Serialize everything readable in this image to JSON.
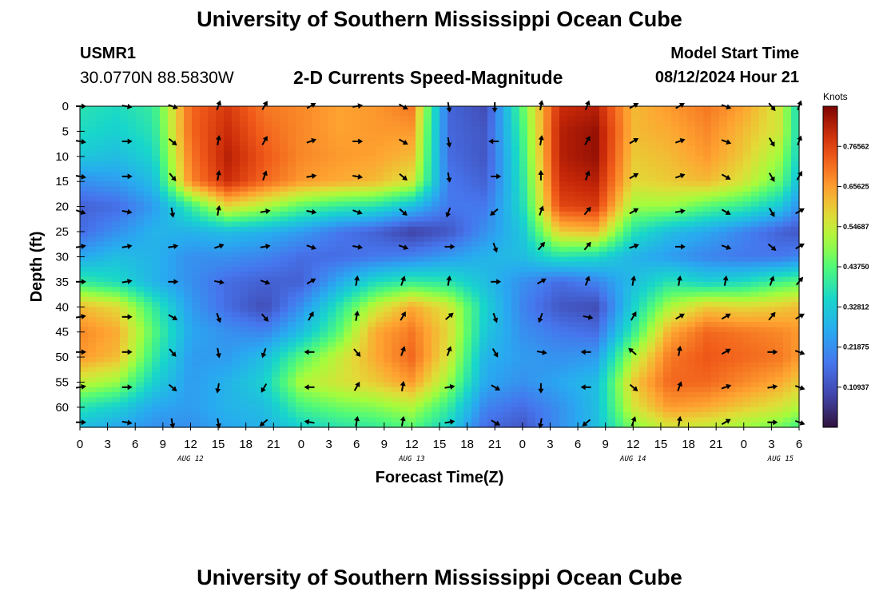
{
  "header": {
    "title": "University of Southern Mississippi Ocean Cube",
    "station_id": "USMR1",
    "station_location": "30.0770N  88.5830W",
    "chart_title": "2-D Currents Speed-Magnitude",
    "run_label": "Model Start Time",
    "run_time": "08/12/2024 Hour 21"
  },
  "footer": {
    "title": "University of Southern Mississippi Ocean Cube"
  },
  "chart_data": {
    "type": "heatmap",
    "title": "2-D Currents Speed-Magnitude",
    "xlabel": "Forecast Time(Z)",
    "ylabel": "Depth (ft)",
    "x_range_hours": [
      0,
      78
    ],
    "y_range_ft": [
      0,
      64
    ],
    "x_ticks": [
      {
        "h": 0,
        "label": "0"
      },
      {
        "h": 3,
        "label": "3"
      },
      {
        "h": 6,
        "label": "6"
      },
      {
        "h": 9,
        "label": "9"
      },
      {
        "h": 12,
        "label": "12"
      },
      {
        "h": 15,
        "label": "15"
      },
      {
        "h": 18,
        "label": "18"
      },
      {
        "h": 21,
        "label": "21"
      },
      {
        "h": 24,
        "label": "0"
      },
      {
        "h": 27,
        "label": "3"
      },
      {
        "h": 30,
        "label": "6"
      },
      {
        "h": 33,
        "label": "9"
      },
      {
        "h": 36,
        "label": "12"
      },
      {
        "h": 39,
        "label": "15"
      },
      {
        "h": 42,
        "label": "18"
      },
      {
        "h": 45,
        "label": "21"
      },
      {
        "h": 48,
        "label": "0"
      },
      {
        "h": 51,
        "label": "3"
      },
      {
        "h": 54,
        "label": "6"
      },
      {
        "h": 57,
        "label": "9"
      },
      {
        "h": 60,
        "label": "12"
      },
      {
        "h": 63,
        "label": "15"
      },
      {
        "h": 66,
        "label": "18"
      },
      {
        "h": 69,
        "label": "21"
      },
      {
        "h": 72,
        "label": "0"
      },
      {
        "h": 75,
        "label": "3"
      },
      {
        "h": 78,
        "label": "6"
      }
    ],
    "day_labels": [
      {
        "h": 12,
        "label": "AUG 12"
      },
      {
        "h": 36,
        "label": "AUG 13"
      },
      {
        "h": 60,
        "label": "AUG 14"
      },
      {
        "h": 76,
        "label": "AUG 15"
      }
    ],
    "y_ticks": [
      0,
      5,
      10,
      15,
      20,
      25,
      30,
      35,
      40,
      45,
      50,
      55,
      60
    ],
    "colorbar": {
      "units": "Knots",
      "min": 0.0,
      "max": 0.875,
      "tick_values": [
        0.765625,
        0.65625,
        0.546875,
        0.4375,
        0.328125,
        0.21875,
        0.109375
      ],
      "tick_labels": [
        "0.76562",
        "0.65625",
        "0.54687",
        "0.43750",
        "0.32812",
        "0.21875",
        "0.10937"
      ]
    },
    "speed_grid": {
      "hours": [
        0,
        4,
        8,
        12,
        16,
        20,
        24,
        28,
        32,
        36,
        40,
        44,
        48,
        52,
        56,
        60,
        64,
        68,
        72,
        76,
        78
      ],
      "depths": [
        0,
        5,
        10,
        15,
        20,
        25,
        30,
        35,
        40,
        45,
        50,
        55,
        60,
        64
      ],
      "values": [
        [
          0.38,
          0.36,
          0.4,
          0.72,
          0.78,
          0.7,
          0.68,
          0.65,
          0.66,
          0.7,
          0.15,
          0.1,
          0.45,
          0.8,
          0.82,
          0.62,
          0.66,
          0.7,
          0.65,
          0.55,
          0.35
        ],
        [
          0.36,
          0.34,
          0.38,
          0.72,
          0.8,
          0.72,
          0.68,
          0.65,
          0.66,
          0.66,
          0.15,
          0.12,
          0.42,
          0.82,
          0.85,
          0.62,
          0.64,
          0.68,
          0.62,
          0.55,
          0.35
        ],
        [
          0.32,
          0.3,
          0.35,
          0.7,
          0.82,
          0.74,
          0.68,
          0.66,
          0.65,
          0.62,
          0.16,
          0.12,
          0.4,
          0.82,
          0.85,
          0.6,
          0.62,
          0.66,
          0.6,
          0.5,
          0.34
        ],
        [
          0.22,
          0.24,
          0.3,
          0.68,
          0.8,
          0.72,
          0.66,
          0.64,
          0.62,
          0.56,
          0.18,
          0.14,
          0.38,
          0.8,
          0.82,
          0.58,
          0.6,
          0.62,
          0.56,
          0.45,
          0.3
        ],
        [
          0.14,
          0.16,
          0.24,
          0.4,
          0.58,
          0.52,
          0.44,
          0.4,
          0.38,
          0.3,
          0.18,
          0.18,
          0.36,
          0.76,
          0.78,
          0.5,
          0.5,
          0.44,
          0.4,
          0.32,
          0.22
        ],
        [
          0.16,
          0.22,
          0.28,
          0.28,
          0.3,
          0.28,
          0.24,
          0.18,
          0.14,
          0.08,
          0.12,
          0.22,
          0.32,
          0.6,
          0.62,
          0.38,
          0.3,
          0.26,
          0.2,
          0.14,
          0.12
        ],
        [
          0.26,
          0.3,
          0.28,
          0.22,
          0.22,
          0.2,
          0.16,
          0.16,
          0.18,
          0.2,
          0.24,
          0.28,
          0.3,
          0.38,
          0.36,
          0.28,
          0.24,
          0.2,
          0.18,
          0.18,
          0.2
        ],
        [
          0.4,
          0.36,
          0.28,
          0.22,
          0.16,
          0.14,
          0.14,
          0.26,
          0.36,
          0.4,
          0.38,
          0.3,
          0.22,
          0.16,
          0.2,
          0.3,
          0.38,
          0.34,
          0.36,
          0.42,
          0.44
        ],
        [
          0.62,
          0.58,
          0.4,
          0.24,
          0.16,
          0.1,
          0.22,
          0.38,
          0.54,
          0.64,
          0.56,
          0.34,
          0.2,
          0.12,
          0.1,
          0.34,
          0.52,
          0.6,
          0.58,
          0.6,
          0.62
        ],
        [
          0.68,
          0.64,
          0.44,
          0.26,
          0.22,
          0.2,
          0.3,
          0.44,
          0.64,
          0.7,
          0.58,
          0.32,
          0.22,
          0.18,
          0.16,
          0.4,
          0.64,
          0.72,
          0.7,
          0.68,
          0.66
        ],
        [
          0.66,
          0.62,
          0.4,
          0.24,
          0.24,
          0.3,
          0.44,
          0.54,
          0.64,
          0.72,
          0.56,
          0.28,
          0.24,
          0.22,
          0.24,
          0.52,
          0.7,
          0.74,
          0.72,
          0.7,
          0.66
        ],
        [
          0.54,
          0.5,
          0.34,
          0.24,
          0.28,
          0.34,
          0.52,
          0.56,
          0.6,
          0.66,
          0.5,
          0.26,
          0.22,
          0.26,
          0.3,
          0.6,
          0.72,
          0.72,
          0.68,
          0.64,
          0.6
        ],
        [
          0.38,
          0.34,
          0.26,
          0.24,
          0.28,
          0.3,
          0.42,
          0.46,
          0.48,
          0.52,
          0.4,
          0.2,
          0.16,
          0.22,
          0.3,
          0.56,
          0.66,
          0.64,
          0.6,
          0.56,
          0.52
        ],
        [
          0.3,
          0.26,
          0.22,
          0.22,
          0.26,
          0.28,
          0.34,
          0.38,
          0.4,
          0.44,
          0.34,
          0.16,
          0.12,
          0.22,
          0.3,
          0.48,
          0.56,
          0.54,
          0.5,
          0.46,
          0.42
        ]
      ]
    },
    "vectors": {
      "hours": [
        0,
        5,
        10,
        15,
        20,
        25,
        30,
        35,
        40,
        45,
        50,
        55,
        60,
        65,
        70,
        75,
        78
      ],
      "depths": [
        0,
        7,
        14,
        21,
        28,
        35,
        42,
        49,
        56,
        63
      ],
      "directions_deg": [
        [
          90,
          100,
          110,
          20,
          30,
          60,
          80,
          120,
          170,
          180,
          10,
          20,
          60,
          60,
          110,
          140,
          20
        ],
        [
          100,
          90,
          130,
          10,
          30,
          70,
          90,
          120,
          170,
          270,
          10,
          30,
          60,
          70,
          110,
          150,
          20
        ],
        [
          100,
          90,
          140,
          10,
          20,
          80,
          100,
          130,
          170,
          90,
          0,
          20,
          60,
          70,
          120,
          150,
          30
        ],
        [
          110,
          100,
          170,
          10,
          80,
          100,
          110,
          130,
          200,
          230,
          20,
          40,
          60,
          80,
          120,
          150,
          60
        ],
        [
          80,
          80,
          80,
          70,
          80,
          110,
          100,
          110,
          90,
          160,
          40,
          40,
          70,
          90,
          110,
          130,
          60
        ],
        [
          90,
          80,
          90,
          100,
          110,
          60,
          10,
          20,
          10,
          90,
          60,
          20,
          10,
          10,
          10,
          20,
          40
        ],
        [
          80,
          90,
          120,
          160,
          140,
          30,
          10,
          30,
          50,
          160,
          200,
          100,
          30,
          60,
          60,
          40,
          60
        ],
        [
          90,
          90,
          140,
          170,
          200,
          270,
          140,
          20,
          20,
          150,
          100,
          270,
          310,
          10,
          60,
          90,
          110
        ],
        [
          80,
          90,
          130,
          190,
          210,
          270,
          30,
          10,
          80,
          120,
          180,
          270,
          130,
          20,
          70,
          80,
          110
        ],
        [
          90,
          100,
          170,
          170,
          230,
          280,
          10,
          10,
          80,
          120,
          190,
          230,
          20,
          10,
          60,
          90,
          110
        ]
      ]
    }
  }
}
